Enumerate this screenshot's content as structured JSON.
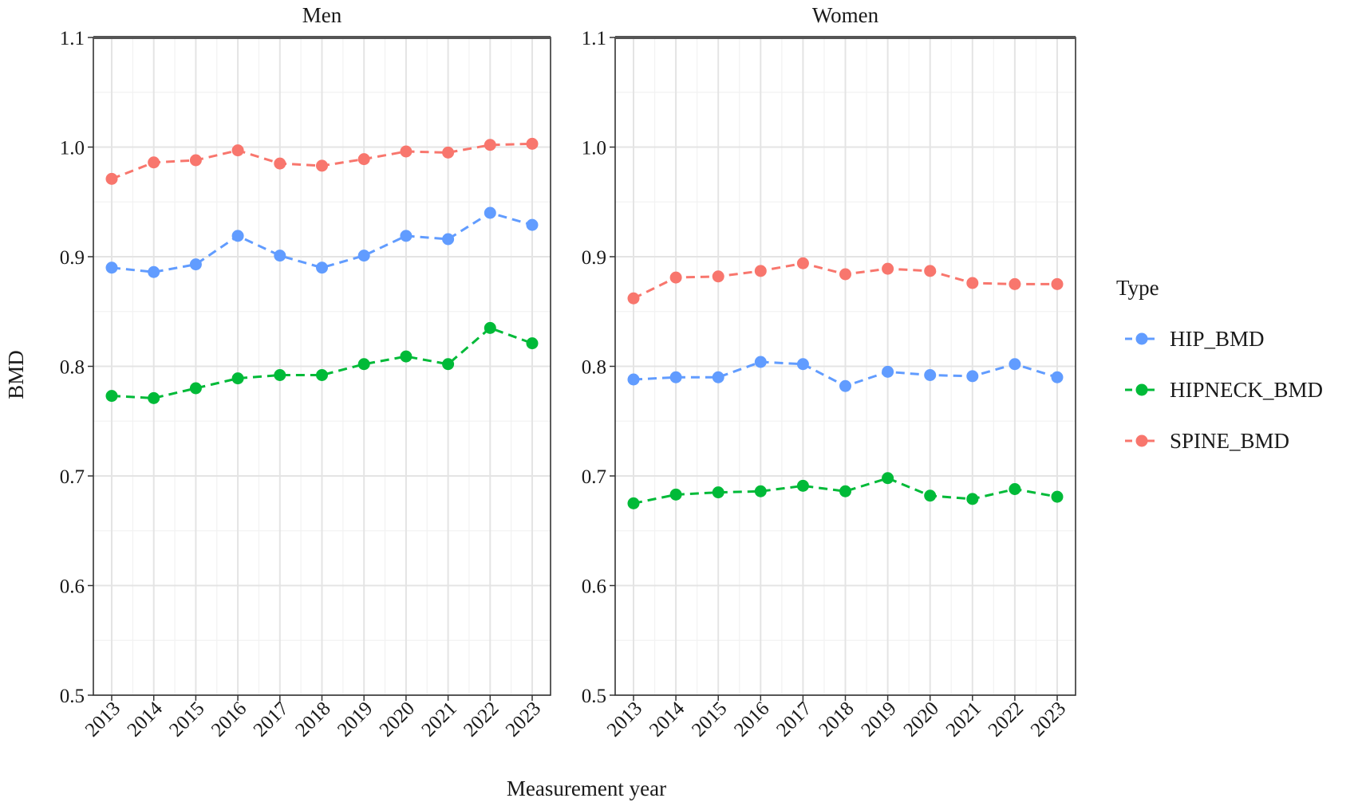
{
  "chart_data": {
    "type": "line",
    "xlabel": "Measurement year",
    "ylabel": "BMD",
    "ylim": [
      0.5,
      1.1
    ],
    "yticks": [
      "0.5",
      "0.6",
      "0.7",
      "0.8",
      "0.9",
      "1.0",
      "1.1"
    ],
    "categories": [
      "2013",
      "2014",
      "2015",
      "2016",
      "2017",
      "2018",
      "2019",
      "2020",
      "2021",
      "2022",
      "2023"
    ],
    "grid": true,
    "legend": {
      "title": "Type",
      "position": "right",
      "entries": [
        {
          "name": "HIP_BMD",
          "color": "#619CFF"
        },
        {
          "name": "HIPNECK_BMD",
          "color": "#00BA38"
        },
        {
          "name": "SPINE_BMD",
          "color": "#F8766D"
        }
      ]
    },
    "panels": [
      {
        "title": "Men",
        "series": [
          {
            "name": "HIP_BMD",
            "values": [
              0.89,
              0.886,
              0.893,
              0.919,
              0.901,
              0.89,
              0.901,
              0.919,
              0.916,
              0.94,
              0.929
            ]
          },
          {
            "name": "HIPNECK_BMD",
            "values": [
              0.773,
              0.771,
              0.78,
              0.789,
              0.792,
              0.792,
              0.802,
              0.809,
              0.802,
              0.835,
              0.821
            ]
          },
          {
            "name": "SPINE_BMD",
            "values": [
              0.971,
              0.986,
              0.988,
              0.997,
              0.985,
              0.983,
              0.989,
              0.996,
              0.995,
              1.002,
              1.003
            ]
          }
        ]
      },
      {
        "title": "Women",
        "series": [
          {
            "name": "HIP_BMD",
            "values": [
              0.788,
              0.79,
              0.79,
              0.804,
              0.802,
              0.782,
              0.795,
              0.792,
              0.791,
              0.802,
              0.79
            ]
          },
          {
            "name": "HIPNECK_BMD",
            "values": [
              0.675,
              0.683,
              0.685,
              0.686,
              0.691,
              0.686,
              0.698,
              0.682,
              0.679,
              0.688,
              0.681
            ]
          },
          {
            "name": "SPINE_BMD",
            "values": [
              0.862,
              0.881,
              0.882,
              0.887,
              0.894,
              0.884,
              0.889,
              0.887,
              0.876,
              0.875,
              0.875
            ]
          }
        ]
      }
    ]
  }
}
